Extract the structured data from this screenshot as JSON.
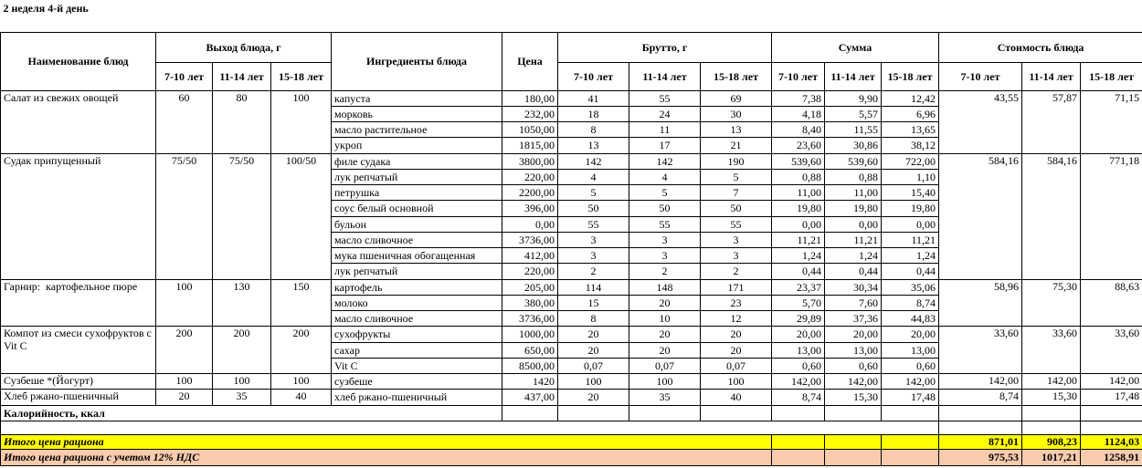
{
  "title": "2 неделя 4-й день",
  "header": {
    "name": "Наименование блюд",
    "yield": "Выход блюда, г",
    "ingredients": "Ингредиенты блюда",
    "price": "Цена",
    "brutto": "Брутто, г",
    "sum": "Сумма",
    "cost": "Стоимость блюда",
    "ages": [
      "7-10 лет",
      "11-14 лет",
      "15-18 лет"
    ]
  },
  "dishes": [
    {
      "name": "Салат из свежих овощей",
      "yield": [
        "60",
        "80",
        "100"
      ],
      "cost": [
        "43,55",
        "57,87",
        "71,15"
      ],
      "ingredients": [
        {
          "name": "капуста",
          "price": "180,00",
          "brutto": [
            "41",
            "55",
            "69"
          ],
          "sum": [
            "7,38",
            "9,90",
            "12,42"
          ]
        },
        {
          "name": "морковь",
          "price": "232,00",
          "brutto": [
            "18",
            "24",
            "30"
          ],
          "sum": [
            "4,18",
            "5,57",
            "6,96"
          ]
        },
        {
          "name": "масло растительное",
          "price": "1050,00",
          "brutto": [
            "8",
            "11",
            "13"
          ],
          "sum": [
            "8,40",
            "11,55",
            "13,65"
          ]
        },
        {
          "name": "укроп",
          "price": "1815,00",
          "brutto": [
            "13",
            "17",
            "21"
          ],
          "sum": [
            "23,60",
            "30,86",
            "38,12"
          ]
        }
      ]
    },
    {
      "name": "Судак припущенный",
      "yield": [
        "75/50",
        "75/50",
        "100/50"
      ],
      "cost": [
        "584,16",
        "584,16",
        "771,18"
      ],
      "ingredients": [
        {
          "name": "филе судака",
          "price": "3800,00",
          "brutto": [
            "142",
            "142",
            "190"
          ],
          "sum": [
            "539,60",
            "539,60",
            "722,00"
          ]
        },
        {
          "name": "лук репчатый",
          "price": "220,00",
          "brutto": [
            "4",
            "4",
            "5"
          ],
          "sum": [
            "0,88",
            "0,88",
            "1,10"
          ]
        },
        {
          "name": "петрушка",
          "price": "2200,00",
          "brutto": [
            "5",
            "5",
            "7"
          ],
          "sum": [
            "11,00",
            "11,00",
            "15,40"
          ]
        },
        {
          "name": "соус белый основной",
          "price": "396,00",
          "brutto": [
            "50",
            "50",
            "50"
          ],
          "sum": [
            "19,80",
            "19,80",
            "19,80"
          ]
        },
        {
          "name": "бульон",
          "price": "0,00",
          "brutto": [
            "55",
            "55",
            "55"
          ],
          "sum": [
            "0,00",
            "0,00",
            "0,00"
          ]
        },
        {
          "name": "масло сливочное",
          "price": "3736,00",
          "brutto": [
            "3",
            "3",
            "3"
          ],
          "sum": [
            "11,21",
            "11,21",
            "11,21"
          ]
        },
        {
          "name": "мука пшеничная обогащенная",
          "price": "412,00",
          "brutto": [
            "3",
            "3",
            "3"
          ],
          "sum": [
            "1,24",
            "1,24",
            "1,24"
          ]
        },
        {
          "name": "лук репчатый",
          "price": "220,00",
          "brutto": [
            "2",
            "2",
            "2"
          ],
          "sum": [
            "0,44",
            "0,44",
            "0,44"
          ]
        }
      ]
    },
    {
      "name": "Гарнир:  картофельное пюре",
      "yield": [
        "100",
        "130",
        "150"
      ],
      "cost": [
        "58,96",
        "75,30",
        "88,63"
      ],
      "ingredients": [
        {
          "name": "картофель",
          "price": "205,00",
          "brutto": [
            "114",
            "148",
            "171"
          ],
          "sum": [
            "23,37",
            "30,34",
            "35,06"
          ]
        },
        {
          "name": "молоко",
          "price": "380,00",
          "brutto": [
            "15",
            "20",
            "23"
          ],
          "sum": [
            "5,70",
            "7,60",
            "8,74"
          ]
        },
        {
          "name": "масло сливочное",
          "price": "3736,00",
          "brutto": [
            "8",
            "10",
            "12"
          ],
          "sum": [
            "29,89",
            "37,36",
            "44,83"
          ]
        }
      ]
    },
    {
      "name": "Компот из смеси сухофруктов с Vit C",
      "yield": [
        "200",
        "200",
        "200"
      ],
      "cost": [
        "33,60",
        "33,60",
        "33,60"
      ],
      "ingredients": [
        {
          "name": "сухофрукты",
          "price": "1000,00",
          "brutto": [
            "20",
            "20",
            "20"
          ],
          "sum": [
            "20,00",
            "20,00",
            "20,00"
          ]
        },
        {
          "name": "сахар",
          "price": "650,00",
          "brutto": [
            "20",
            "20",
            "20"
          ],
          "sum": [
            "13,00",
            "13,00",
            "13,00"
          ]
        },
        {
          "name": "Vit C",
          "price": "8500,00",
          "brutto": [
            "0,07",
            "0,07",
            "0,07"
          ],
          "sum": [
            "0,60",
            "0,60",
            "0,60"
          ]
        }
      ]
    },
    {
      "name": "Сузбеше *(Йогурт)",
      "yield": [
        "100",
        "100",
        "100"
      ],
      "cost": [
        "142,00",
        "142,00",
        "142,00"
      ],
      "ingredients": [
        {
          "name": "сузбеше",
          "price": "1420",
          "brutto": [
            "100",
            "100",
            "100"
          ],
          "sum": [
            "142,00",
            "142,00",
            "142,00"
          ]
        }
      ]
    },
    {
      "name": "Хлеб ржано-пшеничный",
      "yield": [
        "20",
        "35",
        "40"
      ],
      "cost": [
        "8,74",
        "15,30",
        "17,48"
      ],
      "ingredients": [
        {
          "name": "хлеб ржано-пшеничный",
          "price": "437,00",
          "brutto": [
            "20",
            "35",
            "40"
          ],
          "sum": [
            "8,74",
            "15,30",
            "17,48"
          ]
        }
      ]
    }
  ],
  "calories": "Калорийность, ккал",
  "total": {
    "label": "Итого цена рациона",
    "values": [
      "871,01",
      "908,23",
      "1124,03"
    ]
  },
  "total_vat": {
    "label": "Итого цена рациона с учетом 12% НДС",
    "values": [
      "975,53",
      "1017,21",
      "1258,91"
    ]
  }
}
